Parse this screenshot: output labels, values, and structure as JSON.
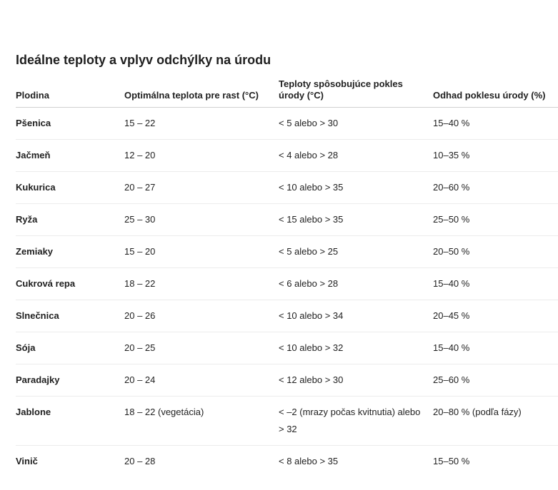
{
  "title": "Ideálne teploty a vplyv odchýlky na úrodu",
  "headers": [
    "Plodina",
    "Optimálna teplota pre rast (°C)",
    "Teploty spôsobujúce pokles úrody (°C)",
    "Odhad poklesu úrody (%)"
  ],
  "rows": [
    [
      "Pšenica",
      "15 – 22",
      "< 5 alebo > 30",
      "15–40 %"
    ],
    [
      "Jačmeň",
      "12 – 20",
      "< 4 alebo > 28",
      "10–35 %"
    ],
    [
      "Kukurica",
      "20 – 27",
      "< 10 alebo > 35",
      "20–60 %"
    ],
    [
      "Ryža",
      "25 – 30",
      "< 15 alebo > 35",
      "25–50 %"
    ],
    [
      "Zemiaky",
      "15 – 20",
      "< 5 alebo > 25",
      "20–50 %"
    ],
    [
      "Cukrová repa",
      "18 – 22",
      "< 6 alebo > 28",
      "15–40 %"
    ],
    [
      "Slnečnica",
      "20 – 26",
      "< 10 alebo > 34",
      "20–45 %"
    ],
    [
      "Sója",
      "20 – 25",
      "< 10 alebo > 32",
      "15–40 %"
    ],
    [
      "Paradajky",
      "20 – 24",
      "< 12 alebo > 30",
      "25–60 %"
    ],
    [
      "Jablone",
      "18 – 22 (vegetácia)",
      "< –2 (mrazy počas kvitnutia) alebo > 32",
      "20–80 % (podľa fázy)"
    ],
    [
      "Vinič",
      "20 – 28",
      "< 8 alebo > 35",
      "15–50 %"
    ]
  ]
}
